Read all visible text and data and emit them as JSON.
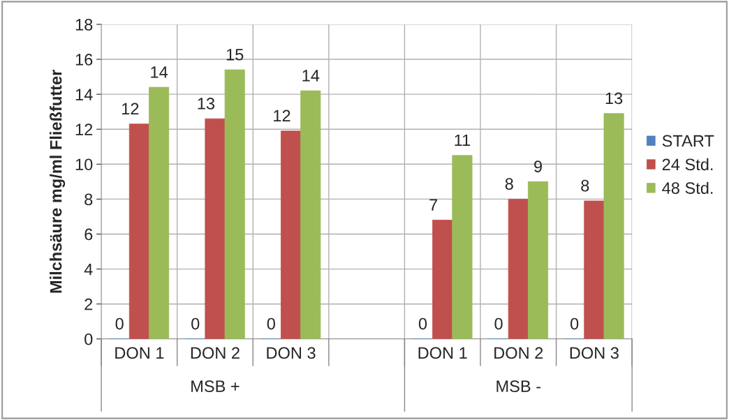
{
  "chart_data": {
    "type": "bar",
    "ylabel": "Milchsäure mg/ml Fließfutter",
    "categories": [
      "DON 1",
      "DON 2",
      "DON 3",
      null,
      "DON 1",
      "DON 2",
      "DON 3"
    ],
    "series": [
      {
        "name": "START",
        "color": "#4f81bd",
        "values": [
          0,
          0,
          0,
          null,
          0,
          0,
          0
        ],
        "value_labels": [
          "0",
          "0",
          "0",
          null,
          "0",
          "0",
          "0"
        ]
      },
      {
        "name": "24 Std.",
        "color": "#c0504d",
        "values": [
          12.3,
          12.6,
          11.9,
          null,
          6.8,
          8.0,
          7.9
        ],
        "value_labels": [
          "12",
          "13",
          "12",
          null,
          "7",
          "8",
          "8"
        ]
      },
      {
        "name": "48 Std.",
        "color": "#9bbb59",
        "values": [
          14.4,
          15.4,
          14.2,
          null,
          10.5,
          9.0,
          12.9
        ],
        "value_labels": [
          "14",
          "15",
          "14",
          null,
          "11",
          "9",
          "13"
        ]
      }
    ],
    "annotations": [
      "MSB +",
      "MSB -"
    ],
    "ylim": [
      0,
      18
    ],
    "yticks": [
      0,
      2,
      4,
      6,
      8,
      10,
      12,
      14,
      16,
      18
    ],
    "grid": true,
    "legend": "right"
  }
}
